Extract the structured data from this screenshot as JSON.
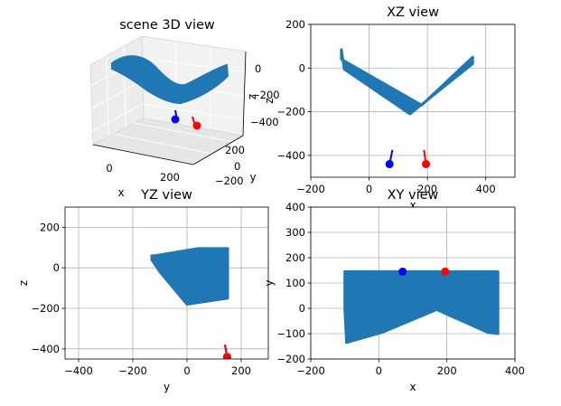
{
  "chart_data": [
    {
      "panel": "scene-3d",
      "type": "scatter",
      "title": "scene 3D view",
      "xlabel": "x",
      "ylabel": "y",
      "zlabel": "z",
      "xticks": [
        "0",
        "200"
      ],
      "yticks": [
        "200",
        "0",
        "−200"
      ],
      "zticks": [
        "0",
        "−200",
        "−400"
      ],
      "markers": [
        {
          "name": "blue",
          "color": "#0000ff",
          "x": 70,
          "y": 145,
          "z": -440
        },
        {
          "name": "red",
          "color": "#ff0000",
          "x": 195,
          "y": 145,
          "z": -440
        }
      ]
    },
    {
      "panel": "xz",
      "type": "scatter",
      "title": "XZ view",
      "xlabel": "x",
      "ylabel": "z",
      "xlim": [
        -200,
        500
      ],
      "ylim": [
        -500,
        200
      ],
      "xticks": [
        -200,
        0,
        200,
        400
      ],
      "yticks": [
        200,
        0,
        -200,
        -400
      ],
      "grid": true,
      "cloud": {
        "color": "#1f77b4",
        "outline": [
          [
            -95,
            85
          ],
          [
            -95,
            40
          ],
          [
            180,
            -170
          ],
          [
            355,
            50
          ],
          [
            355,
            20
          ],
          [
            140,
            -210
          ],
          [
            -85,
            -5
          ]
        ]
      },
      "markers": [
        {
          "name": "blue",
          "color": "#0000ff",
          "x": 70,
          "y": -440,
          "line_to": [
            80,
            -375
          ]
        },
        {
          "name": "red",
          "color": "#ff0000",
          "x": 195,
          "y": -440,
          "line_to": [
            188,
            -375
          ]
        }
      ]
    },
    {
      "panel": "yz",
      "type": "scatter",
      "title": "YZ view",
      "xlabel": "y",
      "ylabel": "z",
      "xlim": [
        -450,
        300
      ],
      "ylim": [
        -450,
        300
      ],
      "xticks": [
        -400,
        -200,
        0,
        200
      ],
      "yticks": [
        200,
        0,
        -200,
        -400
      ],
      "grid": true,
      "cloud": {
        "color": "#1f77b4",
        "outline": [
          [
            -130,
            60
          ],
          [
            -120,
            60
          ],
          [
            40,
            95
          ],
          [
            150,
            95
          ],
          [
            150,
            -150
          ],
          [
            0,
            -180
          ],
          [
            -100,
            -20
          ],
          [
            -130,
            40
          ]
        ]
      },
      "markers": [
        {
          "name": "blue",
          "color": "#0000ff",
          "x": 148,
          "y": -440,
          "line_to": [
            140,
            -380
          ]
        },
        {
          "name": "red",
          "color": "#ff0000",
          "x": 148,
          "y": -440,
          "line_to": [
            140,
            -380
          ]
        }
      ]
    },
    {
      "panel": "xy",
      "type": "scatter",
      "title": "XY view",
      "xlabel": "x",
      "ylabel": "y",
      "xlim": [
        -200,
        400
      ],
      "ylim": [
        -200,
        400
      ],
      "xticks": [
        -200,
        0,
        200,
        400
      ],
      "yticks": [
        400,
        300,
        200,
        100,
        0,
        -100,
        -200
      ],
      "grid": true,
      "cloud": {
        "color": "#1f77b4",
        "outline": [
          [
            -100,
            145
          ],
          [
            350,
            145
          ],
          [
            350,
            -100
          ],
          [
            320,
            -95
          ],
          [
            170,
            -5
          ],
          [
            10,
            -95
          ],
          [
            -95,
            -135
          ],
          [
            -100,
            0
          ]
        ]
      },
      "markers": [
        {
          "name": "blue",
          "color": "#0000ff",
          "x": 70,
          "y": 145
        },
        {
          "name": "red",
          "color": "#ff0000",
          "x": 195,
          "y": 145
        }
      ]
    }
  ]
}
